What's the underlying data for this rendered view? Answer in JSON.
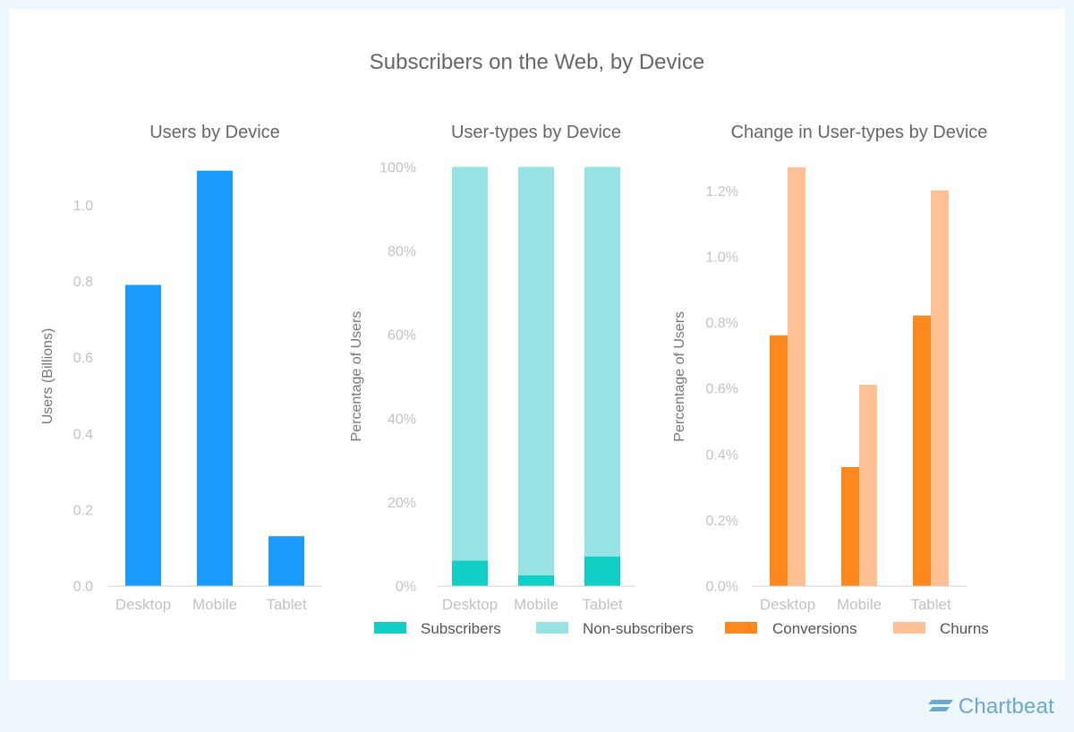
{
  "title": "Subscribers on the Web, by Device",
  "brand": {
    "name": "Chartbeat",
    "icon": "chartbeat-logo-icon"
  },
  "colors": {
    "users": "#1b9cfc",
    "subscribers": "#0fcfc7",
    "non_subscribers": "#97e3e3",
    "conversions": "#fd891e",
    "churns": "#ffc094",
    "axis_text": "#c2c2c2",
    "title_text": "#666666"
  },
  "legend": {
    "placement": "bottom",
    "items": [
      {
        "label": "Subscribers",
        "color": "#0fcfc7"
      },
      {
        "label": "Non-subscribers",
        "color": "#97e3e3"
      },
      {
        "label": "Conversions",
        "color": "#fd891e"
      },
      {
        "label": "Churns",
        "color": "#ffc094"
      }
    ]
  },
  "chart_data": [
    {
      "type": "bar",
      "title": "Users by Device",
      "xlabel": "",
      "ylabel": "Users (Billions)",
      "categories": [
        "Desktop",
        "Mobile",
        "Tablet"
      ],
      "series": [
        {
          "values": [
            0.79,
            1.09,
            0.13
          ],
          "color": "#1b9cfc"
        }
      ],
      "ylim": [
        0,
        1.1
      ],
      "yticks": [
        0,
        0.2,
        0.4,
        0.6,
        0.8,
        1.0
      ],
      "ytick_labels": [
        "0.0",
        "0.2",
        "0.4",
        "0.6",
        "0.8",
        "1.0"
      ],
      "grid": false
    },
    {
      "type": "bar",
      "stacked": true,
      "title": "User-types by Device",
      "xlabel": "",
      "ylabel": "Percentage of Users",
      "categories": [
        "Desktop",
        "Mobile",
        "Tablet"
      ],
      "series": [
        {
          "name": "Subscribers",
          "values": [
            6,
            2.5,
            7
          ],
          "color": "#0fcfc7"
        },
        {
          "name": "Non-subscribers",
          "values": [
            94,
            97.5,
            93
          ],
          "color": "#97e3e3"
        }
      ],
      "ylim": [
        0,
        100
      ],
      "yticks": [
        0,
        20,
        40,
        60,
        80,
        100
      ],
      "ytick_labels": [
        "0%",
        "20%",
        "40%",
        "60%",
        "80%",
        "100%"
      ],
      "grid": false
    },
    {
      "type": "bar",
      "grouped": true,
      "title": "Change in User-types by Device",
      "xlabel": "",
      "ylabel": "Percentage of Users",
      "categories": [
        "Desktop",
        "Mobile",
        "Tablet"
      ],
      "series": [
        {
          "name": "Conversions",
          "values": [
            0.76,
            0.36,
            0.82
          ],
          "color": "#fd891e"
        },
        {
          "name": "Churns",
          "values": [
            1.27,
            0.61,
            1.2
          ],
          "color": "#ffc094"
        }
      ],
      "ylim": [
        0,
        1.27
      ],
      "yticks": [
        0,
        0.2,
        0.4,
        0.6,
        0.8,
        1.0,
        1.2
      ],
      "ytick_labels": [
        "0.0%",
        "0.2%",
        "0.4%",
        "0.6%",
        "0.8%",
        "1.0%",
        "1.2%"
      ],
      "grid": false
    }
  ]
}
